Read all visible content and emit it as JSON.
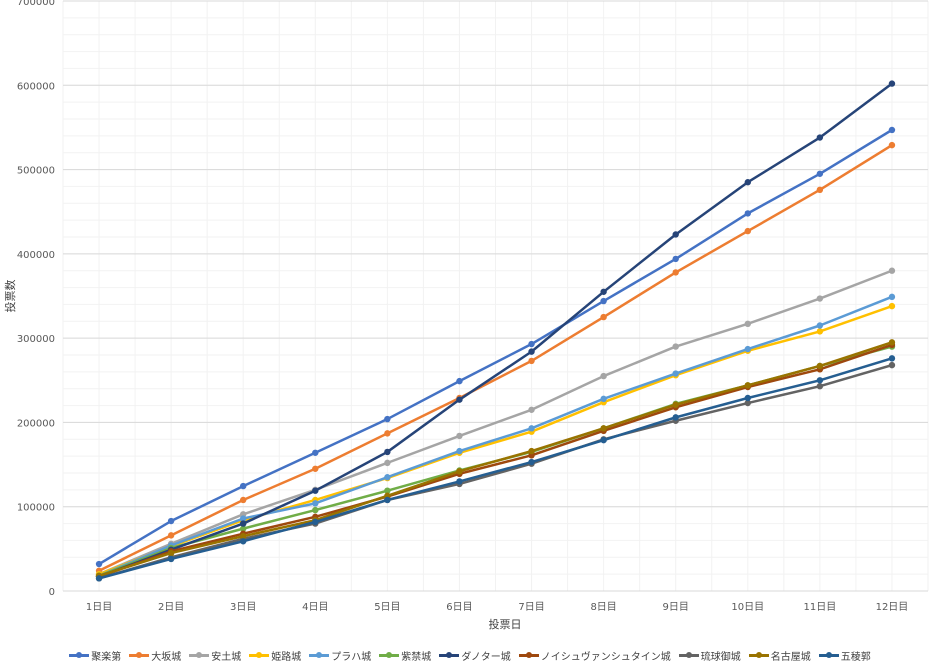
{
  "chart_data": {
    "type": "line",
    "title": "",
    "xlabel": "投票日",
    "ylabel": "投票数",
    "ylim": [
      0,
      700000
    ],
    "yticks": [
      0,
      100000,
      200000,
      300000,
      400000,
      500000,
      600000,
      700000
    ],
    "grid": true,
    "legend_position": "bottom",
    "categories": [
      "1日目",
      "2日目",
      "3日目",
      "4日目",
      "5日目",
      "6日目",
      "7日目",
      "8日目",
      "9日目",
      "10日目",
      "11日目",
      "12日目"
    ],
    "series": [
      {
        "name": "聚楽第",
        "color": "#4472C4",
        "values": [
          32000,
          83000,
          124500,
          164000,
          204000,
          249000,
          293000,
          344000,
          394000,
          448000,
          495000,
          547000
        ]
      },
      {
        "name": "大坂城",
        "color": "#ED7D31",
        "values": [
          24000,
          66000,
          108000,
          145000,
          187000,
          229000,
          273000,
          325000,
          378000,
          427000,
          476000,
          529000
        ]
      },
      {
        "name": "安土城",
        "color": "#A5A5A5",
        "values": [
          20000,
          56000,
          91000,
          120000,
          152000,
          184000,
          215000,
          255000,
          290000,
          317000,
          347000,
          380000
        ]
      },
      {
        "name": "姫路城",
        "color": "#FFC000",
        "values": [
          20000,
          53000,
          84000,
          108000,
          134000,
          164000,
          189000,
          224000,
          256000,
          285000,
          308000,
          338000
        ]
      },
      {
        "name": "プラハ城",
        "color": "#5B9BD5",
        "values": [
          18000,
          54000,
          86000,
          104000,
          135000,
          166000,
          193000,
          228000,
          258000,
          287000,
          315000,
          349000
        ]
      },
      {
        "name": "紫禁城",
        "color": "#70AD47",
        "values": [
          18000,
          51000,
          74000,
          96000,
          119000,
          143000,
          165000,
          193000,
          222000,
          244000,
          267000,
          290000
        ]
      },
      {
        "name": "ダノター城",
        "color": "#264478",
        "values": [
          17000,
          49000,
          80000,
          119000,
          165000,
          227000,
          284000,
          355000,
          423000,
          485000,
          538000,
          602000
        ]
      },
      {
        "name": "ノイシュヴァンシュタイン城",
        "color": "#9E480E",
        "values": [
          17000,
          47000,
          68000,
          88000,
          112000,
          139000,
          161000,
          190000,
          218000,
          242000,
          263000,
          292000
        ]
      },
      {
        "name": "琉球御城",
        "color": "#636363",
        "values": [
          15000,
          40000,
          62000,
          80000,
          108000,
          127000,
          151000,
          180000,
          202000,
          223000,
          243000,
          268000
        ]
      },
      {
        "name": "名古屋城",
        "color": "#997300",
        "values": [
          18000,
          45000,
          65000,
          84000,
          113000,
          142000,
          166000,
          193000,
          221000,
          244000,
          267000,
          295000
        ]
      },
      {
        "name": "五稜郭",
        "color": "#255E91",
        "values": [
          15000,
          38000,
          59000,
          82000,
          108000,
          130000,
          153000,
          179000,
          206000,
          229000,
          250000,
          276000
        ]
      }
    ]
  }
}
